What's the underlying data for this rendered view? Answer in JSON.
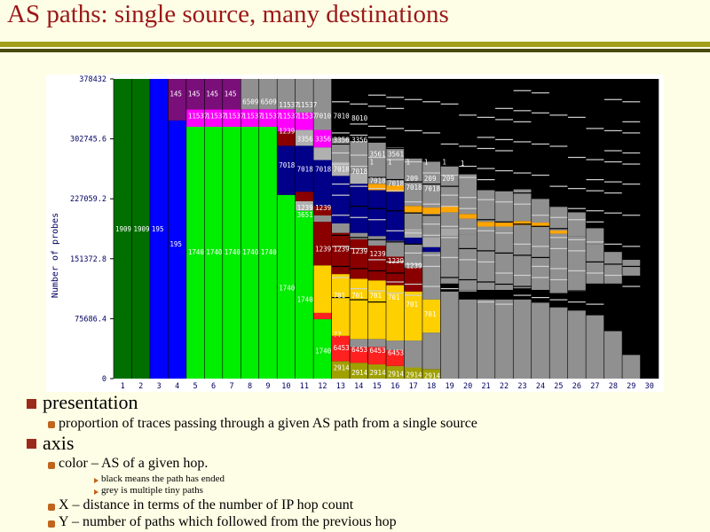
{
  "slide": {
    "title": "AS paths: single source, many destinations",
    "bullets": [
      {
        "text": "presentation",
        "children": [
          {
            "text": "proportion of traces passing through a given AS path from a single source",
            "children": []
          }
        ]
      },
      {
        "text": "axis",
        "children": [
          {
            "text": "color – AS of a given hop.",
            "children": [
              {
                "text": "black means the path has ended"
              },
              {
                "text": "grey is multiple tiny paths"
              }
            ]
          },
          {
            "text": "X – distance in terms of the number of IP hop count",
            "children": []
          },
          {
            "text": "Y –  number of paths which followed from the previous hop",
            "children": []
          }
        ]
      }
    ]
  },
  "chart_data": {
    "type": "bar",
    "stacked": true,
    "ylabel": "Number of probes",
    "ylim": [
      0,
      378432
    ],
    "yticks": [
      "0",
      "75686.4",
      "151372.8",
      "227059.2",
      "302745.6",
      "378432"
    ],
    "x": [
      1,
      2,
      3,
      4,
      5,
      6,
      7,
      8,
      9,
      10,
      11,
      12,
      13,
      14,
      15,
      16,
      17,
      18,
      19,
      20,
      21,
      22,
      23,
      24,
      25,
      26,
      27,
      28,
      29,
      30
    ],
    "colors": {
      "1909": "#006f00",
      "195": "#0000ff",
      "145": "#7a0f7a",
      "11537": "#ff00ff",
      "1740": "#00ee00",
      "7018": "#000088",
      "1239": "#8a0000",
      "701": "#ffd000",
      "3356": "#b0b0b0",
      "6453": "#ff2020",
      "2914": "#a0a000",
      "209": "#a8a8a8",
      "1": "#ffa500",
      "grey": "#909090",
      "ended": "#000000"
    },
    "columns": [
      {
        "x": 1,
        "segments": [
          {
            "as": "1909",
            "value": 378432
          }
        ]
      },
      {
        "x": 2,
        "segments": [
          {
            "as": "1909",
            "value": 378432
          }
        ]
      },
      {
        "x": 3,
        "segments": [
          {
            "as": "195",
            "value": 378432
          }
        ]
      },
      {
        "x": 4,
        "segments": [
          {
            "as": "195",
            "value": 326000
          },
          {
            "as": "145",
            "value": 52432
          }
        ]
      },
      {
        "x": 5,
        "segments": [
          {
            "as": "1740",
            "value": 318000
          },
          {
            "as": "11537",
            "value": 22000
          },
          {
            "as": "145",
            "value": 38432
          }
        ]
      },
      {
        "x": 6,
        "segments": [
          {
            "as": "1740",
            "value": 318000
          },
          {
            "as": "11537",
            "value": 22000
          },
          {
            "as": "145",
            "value": 38432
          }
        ]
      },
      {
        "x": 7,
        "segments": [
          {
            "as": "1740",
            "value": 318000
          },
          {
            "as": "11537",
            "value": 22000
          },
          {
            "as": "145",
            "value": 38432
          }
        ]
      },
      {
        "x": 8,
        "segments": [
          {
            "as": "1740",
            "value": 318000
          },
          {
            "as": "11537",
            "value": 22000
          },
          {
            "as": "6509",
            "value": 38432
          }
        ]
      },
      {
        "x": 9,
        "segments": [
          {
            "as": "1740",
            "value": 318000
          },
          {
            "as": "11537",
            "value": 22000
          },
          {
            "as": "6509",
            "value": 38432
          }
        ]
      },
      {
        "x": 10,
        "segments": [
          {
            "as": "1740",
            "value": 232000
          },
          {
            "as": "7018",
            "value": 62000
          },
          {
            "as": "1239",
            "value": 18000
          },
          {
            "as": "11537",
            "value": 28000
          },
          {
            "as": "grey",
            "value": 38432
          }
        ]
      },
      {
        "x": 11,
        "segments": [
          {
            "as": "1740",
            "value": 212000
          },
          {
            "as": "3356",
            "value": 12000
          },
          {
            "as": "1239",
            "value": 12000
          },
          {
            "as": "7018",
            "value": 58000
          },
          {
            "as": "3356",
            "value": 20000
          },
          {
            "as": "11537",
            "value": 22000
          },
          {
            "as": "grey",
            "value": 42432
          }
        ]
      }
    ],
    "labels": [
      {
        "x": 1,
        "text": "1909",
        "y": 189000
      },
      {
        "x": 2,
        "text": "1909",
        "y": 189000
      },
      {
        "x": 3,
        "text": "195",
        "y": 189000
      },
      {
        "x": 4,
        "text": "195",
        "y": 170000
      },
      {
        "x": 4,
        "text": "145",
        "y": 360000
      },
      {
        "x": 5,
        "text": "1740",
        "y": 160000
      },
      {
        "x": 6,
        "text": "1740",
        "y": 160000
      },
      {
        "x": 7,
        "text": "1740",
        "y": 160000
      },
      {
        "x": 8,
        "text": "1740",
        "y": 160000
      },
      {
        "x": 9,
        "text": "1740",
        "y": 160000
      },
      {
        "x": 5,
        "text": "11537",
        "y": 332000
      },
      {
        "x": 6,
        "text": "11537",
        "y": 332000
      },
      {
        "x": 7,
        "text": "11537",
        "y": 332000
      },
      {
        "x": 8,
        "text": "11537",
        "y": 332000
      },
      {
        "x": 9,
        "text": "11537",
        "y": 332000
      },
      {
        "x": 5,
        "text": "145",
        "y": 360000
      },
      {
        "x": 6,
        "text": "145",
        "y": 360000
      },
      {
        "x": 7,
        "text": "145",
        "y": 360000
      },
      {
        "x": 8,
        "text": "6509",
        "y": 350000
      },
      {
        "x": 9,
        "text": "6509",
        "y": 350000
      },
      {
        "x": 10,
        "text": "1740",
        "y": 115000
      },
      {
        "x": 10,
        "text": "7018",
        "y": 270000
      },
      {
        "x": 10,
        "text": "1239",
        "y": 313000
      },
      {
        "x": 10,
        "text": "11537",
        "y": 332000
      },
      {
        "x": 10,
        "text": "11537",
        "y": 346000
      },
      {
        "x": 11,
        "text": "1740",
        "y": 100000
      },
      {
        "x": 11,
        "text": "3651",
        "y": 207000
      },
      {
        "x": 11,
        "text": "1239",
        "y": 216000
      },
      {
        "x": 11,
        "text": "7018",
        "y": 265000
      },
      {
        "x": 11,
        "text": "3356",
        "y": 303000
      },
      {
        "x": 11,
        "text": "11537",
        "y": 332000
      },
      {
        "x": 11,
        "text": "11537",
        "y": 346000
      },
      {
        "x": 12,
        "text": "1740",
        "y": 35000
      },
      {
        "x": 12,
        "text": "1239",
        "y": 164000
      },
      {
        "x": 12,
        "text": "1239",
        "y": 216000
      },
      {
        "x": 12,
        "text": "7018",
        "y": 265000
      },
      {
        "x": 12,
        "text": "3356",
        "y": 303000
      },
      {
        "x": 12,
        "text": "7010",
        "y": 332000
      },
      {
        "x": 13,
        "text": "2914",
        "y": 14000
      },
      {
        "x": 13,
        "text": "6453",
        "y": 39000
      },
      {
        "x": 13,
        "text": "??",
        "y": 56000
      },
      {
        "x": 13,
        "text": "701",
        "y": 105000
      },
      {
        "x": 13,
        "text": "1239",
        "y": 164000
      },
      {
        "x": 13,
        "text": "7018",
        "y": 265000
      },
      {
        "x": 13,
        "text": "3356",
        "y": 302000
      },
      {
        "x": 13,
        "text": "7010",
        "y": 332000
      },
      {
        "x": 14,
        "text": "2914",
        "y": 8000
      },
      {
        "x": 14,
        "text": "6453",
        "y": 37000
      },
      {
        "x": 14,
        "text": "701",
        "y": 105000
      },
      {
        "x": 14,
        "text": "1239",
        "y": 161000
      },
      {
        "x": 14,
        "text": "7018",
        "y": 262000
      },
      {
        "x": 14,
        "text": "3356",
        "y": 302000
      },
      {
        "x": 14,
        "text": "8010",
        "y": 329000
      },
      {
        "x": 15,
        "text": "2914",
        "y": 8000
      },
      {
        "x": 15,
        "text": "6453",
        "y": 36000
      },
      {
        "x": 15,
        "text": "701",
        "y": 105000
      },
      {
        "x": 15,
        "text": "1239",
        "y": 158000
      },
      {
        "x": 15,
        "text": "7018",
        "y": 250000
      },
      {
        "x": 15,
        "text": "3561",
        "y": 284000
      },
      {
        "x": 15,
        "text": "1",
        "y": 274000
      },
      {
        "x": 16,
        "text": "2914",
        "y": 6000
      },
      {
        "x": 16,
        "text": "6453",
        "y": 33000
      },
      {
        "x": 16,
        "text": "701",
        "y": 103000
      },
      {
        "x": 16,
        "text": "1239",
        "y": 149000
      },
      {
        "x": 16,
        "text": "7018",
        "y": 247000
      },
      {
        "x": 16,
        "text": "3561",
        "y": 284000
      },
      {
        "x": 16,
        "text": "1",
        "y": 274000
      },
      {
        "x": 17,
        "text": "2914",
        "y": 5000
      },
      {
        "x": 17,
        "text": "701",
        "y": 94000
      },
      {
        "x": 17,
        "text": "1239",
        "y": 143000
      },
      {
        "x": 17,
        "text": "7018",
        "y": 242000
      },
      {
        "x": 17,
        "text": "209",
        "y": 253000
      },
      {
        "x": 17,
        "text": "1",
        "y": 274000
      },
      {
        "x": 18,
        "text": "2914",
        "y": 4000
      },
      {
        "x": 18,
        "text": "701",
        "y": 82000
      },
      {
        "x": 18,
        "text": "7018",
        "y": 240000
      },
      {
        "x": 18,
        "text": "209",
        "y": 253000
      },
      {
        "x": 18,
        "text": "1",
        "y": 274000
      },
      {
        "x": 19,
        "text": "209",
        "y": 253000
      },
      {
        "x": 19,
        "text": "1",
        "y": 274000
      },
      {
        "x": 20,
        "text": "1",
        "y": 272000
      }
    ]
  }
}
